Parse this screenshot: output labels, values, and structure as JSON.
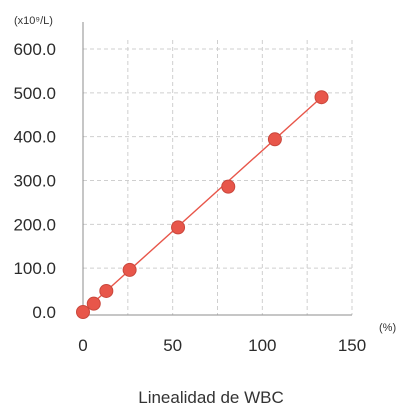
{
  "chart_data": {
    "type": "scatter",
    "title": "Linealidad de WBC",
    "xlabel": "(%)",
    "ylabel": "(x10⁹/L)",
    "xlim": [
      0,
      150
    ],
    "ylim": [
      0,
      600
    ],
    "x_ticks": [
      0,
      50,
      100,
      150
    ],
    "x_tick_labels": [
      "0",
      "50",
      "100",
      "150"
    ],
    "y_ticks": [
      0,
      100,
      200,
      300,
      400,
      500,
      600
    ],
    "y_tick_labels": [
      "0.0",
      "100.0",
      "200.0",
      "300.0",
      "400.0",
      "500.0",
      "600.0"
    ],
    "grid": true,
    "series": [
      {
        "x": [
          0,
          6,
          13,
          26,
          53,
          81,
          107,
          133
        ],
        "y": [
          0,
          19,
          48,
          96,
          193,
          286,
          394,
          490
        ],
        "color": "#e8564a"
      }
    ],
    "trendline": {
      "x": [
        0,
        133
      ],
      "y": [
        0,
        490
      ],
      "color": "#e8564a"
    }
  }
}
